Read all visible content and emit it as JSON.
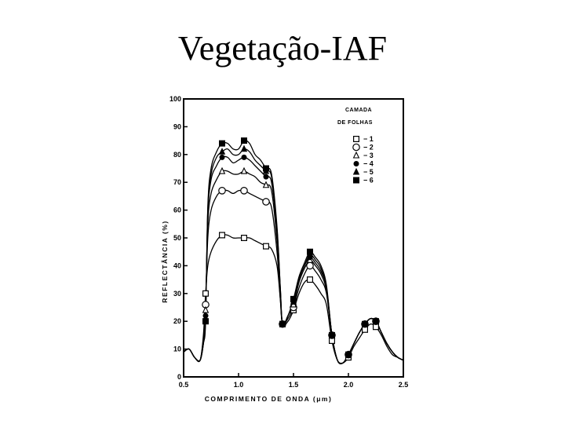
{
  "slide": {
    "title": "Vegetação-IAF"
  },
  "chart_data": {
    "type": "line",
    "title": "",
    "xlabel": "COMPRIMENTO DE ONDA (μm)",
    "ylabel": "REFLECTÂNCIA (%)",
    "xlim": [
      0.5,
      2.5
    ],
    "ylim": [
      0,
      100
    ],
    "x_ticks": [
      0.5,
      1.0,
      1.5,
      2.0,
      2.5
    ],
    "x_tick_labels": [
      "0.5",
      "1.0",
      "1.5",
      "2.0",
      "2.5"
    ],
    "y_ticks": [
      0,
      10,
      20,
      30,
      40,
      50,
      60,
      70,
      80,
      90,
      100
    ],
    "y_tick_labels": [
      "0",
      "10",
      "20",
      "30",
      "40",
      "50",
      "60",
      "70",
      "80",
      "90",
      "100"
    ],
    "legend": {
      "title_line1": "CAMADA",
      "title_line2": "DE FOLHAS",
      "position": "top-right",
      "entries": [
        "− 1",
        "− 2",
        "− 3",
        "− 4",
        "− 5",
        "− 6"
      ]
    },
    "x": [
      0.5,
      0.55,
      0.6,
      0.65,
      0.68,
      0.7,
      0.72,
      0.75,
      0.8,
      0.85,
      0.9,
      0.95,
      1.0,
      1.05,
      1.1,
      1.15,
      1.2,
      1.25,
      1.3,
      1.35,
      1.38,
      1.4,
      1.45,
      1.5,
      1.55,
      1.6,
      1.65,
      1.7,
      1.75,
      1.8,
      1.85,
      1.9,
      1.95,
      2.0,
      2.05,
      2.1,
      2.15,
      2.2,
      2.25,
      2.3,
      2.35,
      2.4,
      2.45,
      2.5
    ],
    "series": [
      {
        "name": "1",
        "marker": "square-open",
        "values": [
          9,
          10,
          7,
          6,
          15,
          30,
          40,
          45,
          49,
          51,
          51,
          50,
          50,
          50,
          50,
          49,
          48,
          47,
          46,
          40,
          28,
          19,
          20,
          24,
          30,
          34,
          35,
          33,
          30,
          26,
          13,
          6,
          5,
          7,
          11,
          14,
          17,
          19,
          18,
          15,
          11,
          8,
          7,
          6
        ]
      },
      {
        "name": "2",
        "marker": "circle-open",
        "values": [
          9,
          10,
          7,
          6,
          14,
          26,
          50,
          60,
          65,
          67,
          67,
          66,
          67,
          67,
          66,
          65,
          64,
          63,
          61,
          45,
          28,
          19,
          21,
          25,
          32,
          37,
          40,
          38,
          35,
          30,
          15,
          6,
          5,
          8,
          12,
          16,
          19,
          21,
          20,
          16,
          12,
          9,
          7,
          6
        ]
      },
      {
        "name": "3",
        "marker": "triangle-open",
        "values": [
          9,
          10,
          7,
          6,
          13,
          24,
          55,
          66,
          71,
          74,
          74,
          73,
          73,
          74,
          73,
          72,
          70,
          69,
          67,
          49,
          30,
          19,
          22,
          26,
          34,
          39,
          42,
          40,
          37,
          31,
          15,
          6,
          5,
          8,
          12,
          16,
          19,
          21,
          20,
          16,
          12,
          9,
          7,
          6
        ]
      },
      {
        "name": "4",
        "marker": "circle-filled",
        "values": [
          9,
          10,
          7,
          6,
          12,
          22,
          58,
          71,
          76,
          79,
          79,
          77,
          78,
          79,
          78,
          76,
          74,
          72,
          70,
          52,
          31,
          19,
          22,
          27,
          35,
          40,
          43,
          41,
          38,
          32,
          15,
          6,
          5,
          8,
          12,
          16,
          19,
          21,
          20,
          16,
          12,
          9,
          7,
          6
        ]
      },
      {
        "name": "5",
        "marker": "triangle-filled",
        "values": [
          9,
          10,
          7,
          6,
          12,
          21,
          60,
          73,
          79,
          81,
          82,
          80,
          80,
          82,
          81,
          78,
          76,
          74,
          72,
          53,
          32,
          19,
          22,
          27,
          35,
          40,
          44,
          42,
          39,
          32,
          15,
          6,
          5,
          8,
          12,
          16,
          19,
          21,
          20,
          16,
          12,
          9,
          7,
          6
        ]
      },
      {
        "name": "6",
        "marker": "square-filled",
        "values": [
          9,
          10,
          7,
          6,
          12,
          20,
          61,
          75,
          81,
          84,
          84,
          82,
          82,
          85,
          84,
          80,
          78,
          75,
          73,
          54,
          32,
          19,
          22,
          28,
          36,
          41,
          45,
          43,
          40,
          33,
          15,
          6,
          5,
          8,
          12,
          16,
          19,
          21,
          20,
          16,
          12,
          9,
          7,
          6
        ]
      }
    ],
    "marker_x": [
      0.7,
      0.85,
      1.05,
      1.25,
      1.4,
      1.5,
      1.65,
      1.85,
      2.0,
      2.15,
      2.25
    ]
  }
}
